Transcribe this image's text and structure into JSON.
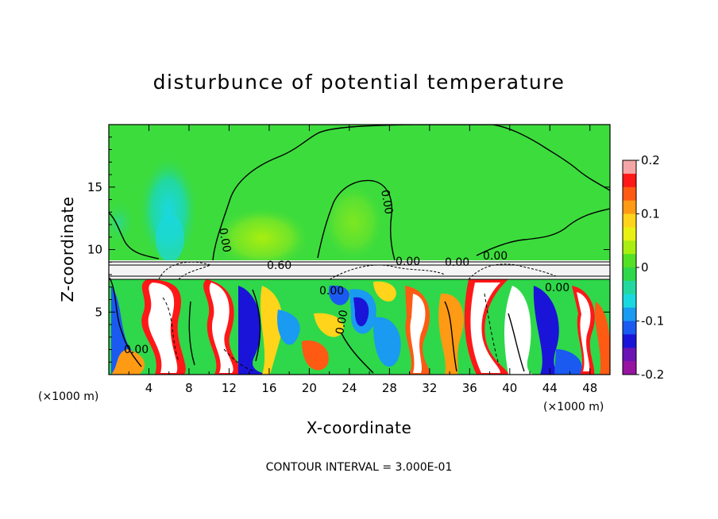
{
  "chart_data": {
    "type": "heatmap",
    "title": "disturbunce of potential temperature",
    "xlabel": "X-coordinate",
    "ylabel": "Z-coordinate",
    "x_unit_label": "(×1000 m)",
    "y_unit_label": "(×1000 m)",
    "xlim": [
      0,
      50
    ],
    "ylim": [
      0,
      20
    ],
    "x_ticks": [
      "4",
      "8",
      "12",
      "16",
      "20",
      "24",
      "28",
      "32",
      "36",
      "40",
      "44",
      "48"
    ],
    "y_ticks": [
      "5",
      "10",
      "15"
    ],
    "colorbar": {
      "range": [
        -0.2,
        0.2
      ],
      "tick_labels": [
        "0.2",
        "0.1",
        "0",
        "-0.1",
        "-0.2"
      ],
      "colors": [
        "#f4a6a6",
        "#ff1818",
        "#ff5a14",
        "#ff9a14",
        "#ffd41a",
        "#e8f014",
        "#a8ee10",
        "#54e024",
        "#2ed84a",
        "#22d8a0",
        "#1ad8e0",
        "#1a9af0",
        "#1a5af0",
        "#1a14d8",
        "#6a14b4",
        "#9614a0"
      ]
    },
    "contour_labels": [
      "0.00",
      "0.00",
      "0.60",
      "0.00",
      "0.00",
      "0.00",
      "0.00",
      "0.00",
      "0.00",
      "0.00"
    ],
    "footer": "CONTOUR INTERVAL = 3.000E-01",
    "grid": false,
    "legend": "colorbar right"
  },
  "colors": {
    "upper_field": "#3cdc3c",
    "stable_layer": "#f4f4f4",
    "frame": "#000000"
  }
}
